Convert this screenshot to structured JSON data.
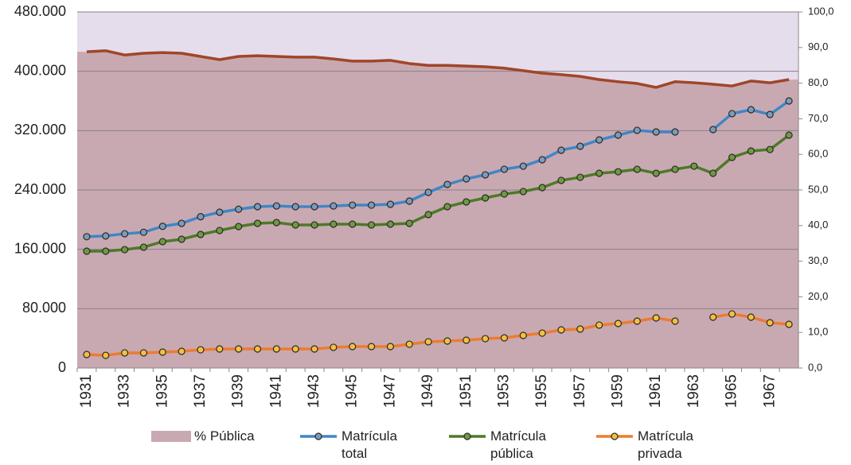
{
  "chart_data": {
    "type": "line",
    "categories": [
      "1931",
      null,
      "1933",
      null,
      "1935",
      null,
      "1937",
      null,
      "1939",
      null,
      "1941",
      null,
      "1943",
      null,
      "1945",
      null,
      "1947",
      null,
      "1949",
      null,
      "1951",
      null,
      "1953",
      null,
      "1955",
      null,
      "1957",
      null,
      "1959",
      null,
      "1961",
      null,
      "1963",
      null,
      "1965",
      null,
      "1967",
      null
    ],
    "series": [
      {
        "name": "% Pública",
        "axis": "y2",
        "style": "area",
        "color": "#a0462a",
        "fill": "#c9a9b1",
        "values": [
          88.8,
          89.1,
          87.9,
          88.4,
          88.6,
          88.4,
          87.5,
          86.6,
          87.5,
          87.7,
          87.5,
          87.3,
          87.3,
          86.8,
          86.2,
          86.2,
          86.4,
          85.5,
          85.0,
          85.0,
          84.8,
          84.6,
          84.2,
          83.5,
          82.8,
          82.4,
          81.9,
          81.0,
          80.4,
          79.9,
          78.8,
          80.4,
          80.1,
          79.7,
          79.2,
          80.6,
          80.1,
          81.0
        ]
      },
      {
        "name": "Matrícula total",
        "color": "#3f86c8",
        "marker_color": "#7d9bb8",
        "values": [
          177000,
          178000,
          181000,
          183000,
          191000,
          195000,
          204000,
          210000,
          214000,
          217500,
          218500,
          217500,
          217500,
          218500,
          219600,
          219600,
          220700,
          225000,
          236800,
          247500,
          255000,
          260400,
          267900,
          272100,
          280700,
          293600,
          298900,
          307500,
          313900,
          320400,
          318200,
          318200,
          null,
          321400,
          342900,
          348200,
          341800,
          360000
        ]
      },
      {
        "name": "Matrícula pública",
        "color": "#4d7a28",
        "marker_color": "#6f9a40",
        "values": [
          157500,
          157500,
          159600,
          162900,
          170400,
          173600,
          180000,
          185400,
          190700,
          195000,
          196100,
          192900,
          192900,
          193900,
          193900,
          192900,
          193900,
          195000,
          206800,
          217500,
          223900,
          229300,
          234600,
          237900,
          243200,
          252900,
          257100,
          262500,
          264600,
          267900,
          262500,
          267900,
          272100,
          262500,
          283900,
          292500,
          294600,
          313900
        ]
      },
      {
        "name": "Matrícula privada",
        "color": "#ee7b30",
        "marker_color": "#f3c040",
        "values": [
          18200,
          17100,
          20400,
          20400,
          21400,
          22500,
          24600,
          25700,
          25700,
          25700,
          25700,
          25700,
          25700,
          27900,
          28900,
          28900,
          28900,
          32100,
          35400,
          36400,
          37500,
          39600,
          40700,
          43900,
          47100,
          51400,
          52500,
          57900,
          60000,
          63200,
          67500,
          63200,
          null,
          68600,
          72900,
          68600,
          61100,
          58900
        ]
      }
    ],
    "ylim": [
      0,
      480000
    ],
    "yticks": [
      0,
      {
        "value": 80000,
        "label": "80.000"
      },
      {
        "value": 160000,
        "label": "160.000"
      },
      {
        "value": 240000,
        "label": "240.000"
      },
      {
        "value": 320000,
        "label": "320.000"
      },
      {
        "value": 400000,
        "label": "400.000"
      },
      {
        "value": 480000,
        "label": "480.000"
      }
    ],
    "y2lim": [
      0,
      100
    ],
    "y2ticks": [
      {
        "value": 0,
        "label": "0,0"
      },
      {
        "value": 10,
        "label": "10,0"
      },
      {
        "value": 20,
        "label": "20,0"
      },
      {
        "value": 30,
        "label": "30,0"
      },
      {
        "value": 40,
        "label": "40,0"
      },
      {
        "value": 50,
        "label": "50,0"
      },
      {
        "value": 60,
        "label": "60,0"
      },
      {
        "value": 70,
        "label": "70,0"
      },
      {
        "value": 80,
        "label": "80,0"
      },
      {
        "value": 90,
        "label": "90,0"
      },
      {
        "value": 100,
        "label": "100,0"
      }
    ],
    "grid": true,
    "background": "#e6ddec",
    "legend": "bottom"
  }
}
